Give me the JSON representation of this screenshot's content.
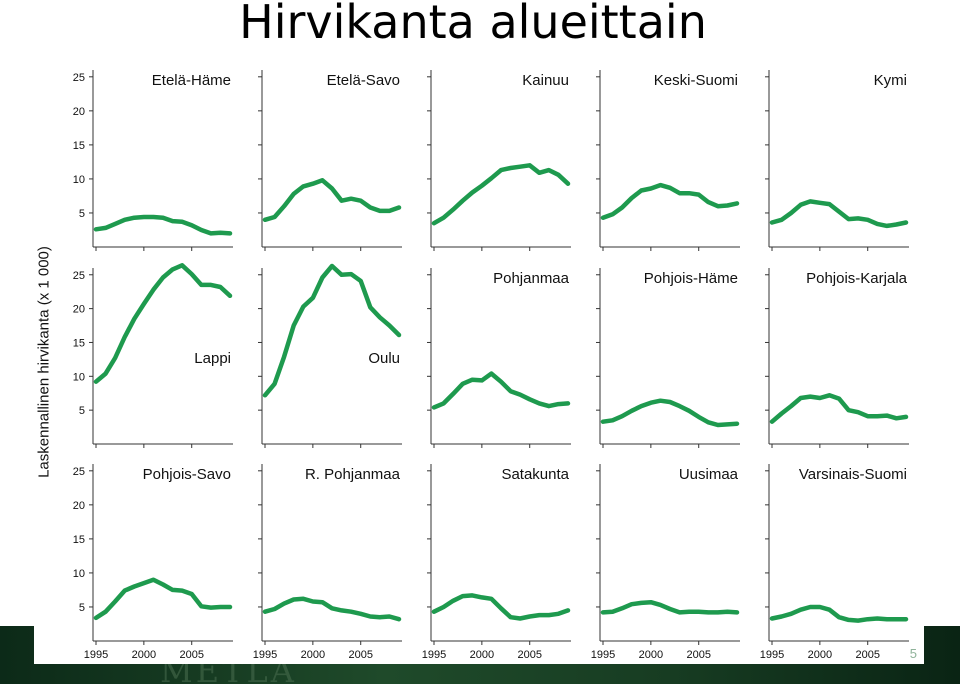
{
  "title": "Hirvikanta alueittain",
  "footer_logo": "METLA",
  "footer_page": "5",
  "chart_data": {
    "type": "line",
    "title": "Hirvikanta alueittain",
    "ylabel": "Laskennallinen hirvikanta (x 1 000)",
    "xlabel": "",
    "color": "#1e9a4e",
    "x": [
      1995,
      1996,
      1997,
      1998,
      1999,
      2000,
      2001,
      2002,
      2003,
      2004,
      2005,
      2006,
      2007,
      2008,
      2009
    ],
    "top_yticks": [
      "5",
      "10",
      "15",
      "20",
      "25"
    ],
    "yticks": [
      5,
      10,
      15,
      20,
      25
    ],
    "ylim": [
      0,
      26
    ],
    "xticks": [
      1995,
      2000,
      2005
    ],
    "xtick_labels": [
      "1995",
      "2000",
      "2005"
    ],
    "panels": [
      {
        "name": "Etelä-Häme",
        "values": [
          2.6,
          2.8,
          3.4,
          4.0,
          4.3,
          4.4,
          4.4,
          4.3,
          3.8,
          3.7,
          3.2,
          2.5,
          2.0,
          2.1,
          2.0
        ]
      },
      {
        "name": "Etelä-Savo",
        "values": [
          4.0,
          4.4,
          6.0,
          7.8,
          8.9,
          9.3,
          9.8,
          8.6,
          6.8,
          7.1,
          6.8,
          5.8,
          5.3,
          5.3,
          5.8
        ]
      },
      {
        "name": "Kainuu",
        "values": [
          3.5,
          4.3,
          5.5,
          6.8,
          8.0,
          9.0,
          10.1,
          11.3,
          11.6,
          11.8,
          12.0,
          10.9,
          11.3,
          10.6,
          9.3
        ]
      },
      {
        "name": "Keski-Suomi",
        "values": [
          4.3,
          4.8,
          5.8,
          7.2,
          8.3,
          8.6,
          9.1,
          8.7,
          7.9,
          7.9,
          7.7,
          6.6,
          6.0,
          6.1,
          6.4
        ]
      },
      {
        "name": "Kymi",
        "values": [
          3.6,
          4.0,
          5.0,
          6.2,
          6.7,
          6.5,
          6.3,
          5.2,
          4.1,
          4.2,
          4.0,
          3.4,
          3.1,
          3.3,
          3.6
        ]
      },
      {
        "name": "Lappi",
        "values": [
          9.2,
          10.4,
          12.7,
          15.8,
          18.5,
          20.7,
          22.8,
          24.6,
          25.8,
          26.4,
          25.1,
          23.5,
          23.5,
          23.2,
          21.9
        ]
      },
      {
        "name": "Oulu",
        "values": [
          7.2,
          8.9,
          12.9,
          17.5,
          20.3,
          21.6,
          24.6,
          26.3,
          25.0,
          25.1,
          24.1,
          20.2,
          18.7,
          17.5,
          16.1
        ]
      },
      {
        "name": "Pohjanmaa",
        "values": [
          5.4,
          6.0,
          7.4,
          8.9,
          9.5,
          9.4,
          10.4,
          9.2,
          7.8,
          7.3,
          6.6,
          6.0,
          5.6,
          5.9,
          6.0
        ]
      },
      {
        "name": "Pohjois-Häme",
        "values": [
          3.3,
          3.5,
          4.1,
          4.9,
          5.6,
          6.1,
          6.4,
          6.2,
          5.6,
          4.9,
          4.0,
          3.2,
          2.8,
          2.9,
          3.0
        ]
      },
      {
        "name": "Pohjois-Karjala",
        "values": [
          3.3,
          4.5,
          5.6,
          6.8,
          7.0,
          6.8,
          7.2,
          6.7,
          5.0,
          4.7,
          4.1,
          4.1,
          4.2,
          3.8,
          4.0
        ]
      },
      {
        "name": "Pohjois-Savo",
        "values": [
          3.4,
          4.3,
          5.8,
          7.4,
          8.0,
          8.5,
          9.0,
          8.3,
          7.5,
          7.4,
          6.9,
          5.1,
          4.9,
          5.0,
          5.0
        ]
      },
      {
        "name": "R. Pohjanmaa",
        "values": [
          4.3,
          4.7,
          5.5,
          6.1,
          6.2,
          5.8,
          5.7,
          4.8,
          4.5,
          4.3,
          4.0,
          3.6,
          3.5,
          3.6,
          3.2
        ]
      },
      {
        "name": "Satakunta",
        "values": [
          4.3,
          5.0,
          5.9,
          6.6,
          6.7,
          6.4,
          6.2,
          4.8,
          3.5,
          3.3,
          3.6,
          3.8,
          3.8,
          4.0,
          4.5
        ]
      },
      {
        "name": "Uusimaa",
        "values": [
          4.2,
          4.3,
          4.8,
          5.4,
          5.6,
          5.7,
          5.3,
          4.7,
          4.2,
          4.3,
          4.3,
          4.2,
          4.2,
          4.3,
          4.2
        ]
      },
      {
        "name": "Varsinais-Suomi",
        "values": [
          3.3,
          3.6,
          4.0,
          4.6,
          5.0,
          5.0,
          4.6,
          3.5,
          3.1,
          3.0,
          3.2,
          3.3,
          3.2,
          3.2,
          3.2
        ]
      }
    ]
  }
}
